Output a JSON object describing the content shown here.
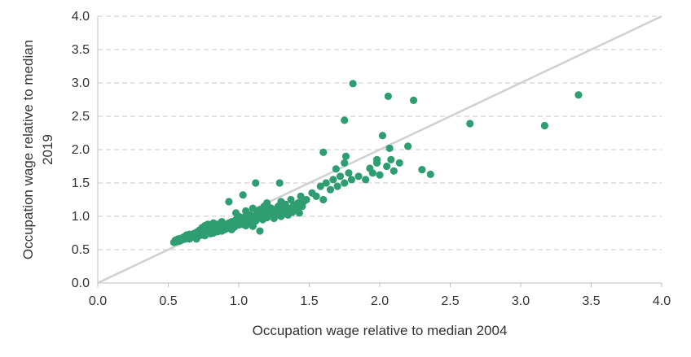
{
  "chart_data": {
    "type": "scatter",
    "xlabel": "Occupation wage relative to median 2004",
    "ylabel_lines": [
      "Occupation wage relative to median",
      "2019"
    ],
    "xlim": [
      0,
      4
    ],
    "ylim": [
      0,
      4
    ],
    "xticks": [
      "0.0",
      "0.5",
      "1.0",
      "1.5",
      "2.0",
      "2.5",
      "3.0",
      "3.5",
      "4.0"
    ],
    "yticks": [
      "0.0",
      "0.5",
      "1.0",
      "1.5",
      "2.0",
      "2.5",
      "3.0",
      "3.5",
      "4.0"
    ],
    "grid": "horizontal dashed",
    "reference_line": {
      "type": "45-degree",
      "from": [
        0,
        0
      ],
      "to": [
        4,
        4
      ],
      "color": "#d0d0d0"
    },
    "marker_color": "#2e9e72",
    "gridline_color": "#c8c8c8",
    "axis_color": "#bfbfbf",
    "points": [
      [
        0.54,
        0.61
      ],
      [
        0.55,
        0.64
      ],
      [
        0.56,
        0.62
      ],
      [
        0.57,
        0.66
      ],
      [
        0.58,
        0.63
      ],
      [
        0.59,
        0.67
      ],
      [
        0.6,
        0.65
      ],
      [
        0.61,
        0.69
      ],
      [
        0.62,
        0.66
      ],
      [
        0.63,
        0.68
      ],
      [
        0.63,
        0.72
      ],
      [
        0.64,
        0.7
      ],
      [
        0.65,
        0.66
      ],
      [
        0.65,
        0.73
      ],
      [
        0.66,
        0.68
      ],
      [
        0.67,
        0.71
      ],
      [
        0.68,
        0.7
      ],
      [
        0.68,
        0.74
      ],
      [
        0.69,
        0.72
      ],
      [
        0.7,
        0.68
      ],
      [
        0.7,
        0.76
      ],
      [
        0.71,
        0.73
      ],
      [
        0.72,
        0.79
      ],
      [
        0.72,
        0.71
      ],
      [
        0.73,
        0.75
      ],
      [
        0.74,
        0.72
      ],
      [
        0.74,
        0.83
      ],
      [
        0.75,
        0.78
      ],
      [
        0.76,
        0.74
      ],
      [
        0.76,
        0.86
      ],
      [
        0.77,
        0.8
      ],
      [
        0.78,
        0.76
      ],
      [
        0.78,
        0.88
      ],
      [
        0.79,
        0.82
      ],
      [
        0.8,
        0.74
      ],
      [
        0.8,
        0.85
      ],
      [
        0.81,
        0.8
      ],
      [
        0.82,
        0.9
      ],
      [
        0.82,
        0.75
      ],
      [
        0.83,
        0.84
      ],
      [
        0.84,
        0.8
      ],
      [
        0.85,
        0.77
      ],
      [
        0.85,
        0.88
      ],
      [
        0.86,
        0.82
      ],
      [
        0.87,
        0.85
      ],
      [
        0.88,
        0.78
      ],
      [
        0.88,
        0.92
      ],
      [
        0.89,
        0.84
      ],
      [
        0.9,
        0.8
      ],
      [
        0.9,
        0.88
      ],
      [
        0.91,
        0.86
      ],
      [
        0.92,
        0.82
      ],
      [
        0.93,
        0.9
      ],
      [
        0.94,
        0.85
      ],
      [
        0.95,
        0.8
      ],
      [
        0.95,
        0.92
      ],
      [
        0.96,
        0.87
      ],
      [
        0.97,
        0.84
      ],
      [
        0.98,
        0.95
      ],
      [
        0.98,
        1.05
      ],
      [
        0.99,
        0.9
      ],
      [
        1.0,
        0.87
      ],
      [
        1.0,
        1.0
      ],
      [
        1.01,
        0.93
      ],
      [
        1.02,
        0.88
      ],
      [
        1.03,
        0.98
      ],
      [
        1.04,
        0.92
      ],
      [
        1.05,
        0.86
      ],
      [
        1.05,
        1.08
      ],
      [
        1.06,
        0.95
      ],
      [
        1.07,
        0.9
      ],
      [
        1.08,
        1.02
      ],
      [
        1.09,
        0.96
      ],
      [
        1.1,
        0.85
      ],
      [
        1.1,
        1.12
      ],
      [
        1.11,
        1.0
      ],
      [
        1.12,
        0.93
      ],
      [
        1.13,
        1.05
      ],
      [
        1.14,
        0.98
      ],
      [
        1.15,
        1.1
      ],
      [
        1.15,
        0.78
      ],
      [
        1.16,
        1.02
      ],
      [
        1.17,
        0.95
      ],
      [
        1.18,
        1.15
      ],
      [
        1.19,
        1.05
      ],
      [
        1.2,
        0.98
      ],
      [
        1.2,
        1.2
      ],
      [
        1.21,
        1.08
      ],
      [
        1.22,
        1.02
      ],
      [
        1.23,
        1.12
      ],
      [
        1.24,
        1.05
      ],
      [
        1.25,
        0.97
      ],
      [
        1.26,
        1.1
      ],
      [
        1.27,
        1.02
      ],
      [
        1.28,
        1.15
      ],
      [
        1.29,
        1.06
      ],
      [
        1.3,
        1.0
      ],
      [
        1.3,
        1.22
      ],
      [
        1.31,
        1.1
      ],
      [
        1.32,
        1.04
      ],
      [
        1.33,
        1.18
      ],
      [
        1.34,
        1.08
      ],
      [
        1.35,
        1.02
      ],
      [
        1.36,
        1.12
      ],
      [
        1.37,
        1.25
      ],
      [
        1.38,
        1.06
      ],
      [
        1.4,
        1.15
      ],
      [
        1.41,
        1.1
      ],
      [
        1.42,
        1.2
      ],
      [
        1.43,
        1.05
      ],
      [
        1.44,
        1.3
      ],
      [
        1.45,
        1.15
      ],
      [
        1.48,
        1.25
      ],
      [
        1.52,
        1.35
      ],
      [
        1.55,
        1.3
      ],
      [
        1.58,
        1.45
      ],
      [
        1.6,
        1.25
      ],
      [
        1.62,
        1.5
      ],
      [
        1.65,
        1.4
      ],
      [
        1.67,
        1.55
      ],
      [
        1.7,
        1.45
      ],
      [
        1.72,
        1.6
      ],
      [
        1.75,
        1.5
      ],
      [
        1.75,
        1.8
      ],
      [
        1.78,
        1.65
      ],
      [
        1.8,
        1.55
      ],
      [
        1.85,
        1.6
      ],
      [
        1.9,
        1.55
      ],
      [
        1.93,
        1.72
      ],
      [
        1.95,
        1.65
      ],
      [
        1.98,
        1.8
      ],
      [
        2.0,
        1.62
      ],
      [
        2.05,
        1.75
      ],
      [
        2.08,
        1.85
      ],
      [
        2.1,
        1.68
      ],
      [
        2.14,
        1.8
      ],
      [
        2.2,
        2.05
      ],
      [
        2.3,
        1.7
      ],
      [
        1.22,
        1.13
      ],
      [
        1.27,
        1.09
      ],
      [
        1.33,
        1.11
      ],
      [
        1.39,
        1.17
      ],
      [
        1.46,
        1.22
      ],
      [
        1.16,
        1.08
      ],
      [
        1.07,
        0.99
      ],
      [
        0.96,
        0.91
      ],
      [
        0.86,
        0.79
      ],
      [
        0.76,
        0.71
      ],
      [
        0.7,
        0.66
      ],
      [
        1.12,
        1.5
      ],
      [
        1.29,
        1.5
      ],
      [
        1.03,
        1.32
      ],
      [
        0.93,
        1.22
      ],
      [
        1.6,
        1.96
      ],
      [
        1.76,
        1.9
      ],
      [
        1.81,
        2.99
      ],
      [
        2.06,
        2.8
      ],
      [
        2.24,
        2.74
      ],
      [
        1.75,
        2.44
      ],
      [
        2.02,
        2.21
      ],
      [
        2.07,
        2.02
      ],
      [
        2.64,
        2.39
      ],
      [
        3.17,
        2.36
      ],
      [
        3.41,
        2.82
      ],
      [
        2.36,
        1.63
      ],
      [
        1.69,
        1.71
      ],
      [
        1.98,
        1.85
      ]
    ]
  }
}
